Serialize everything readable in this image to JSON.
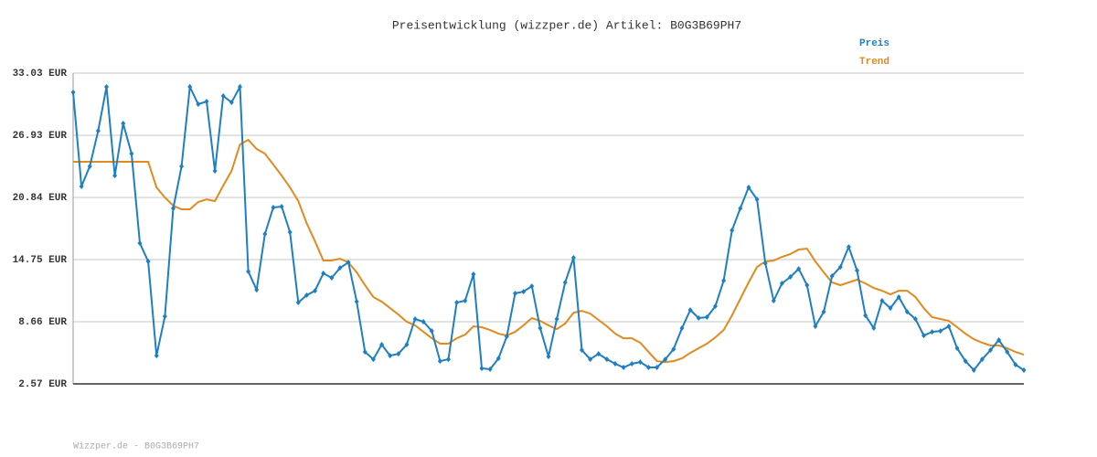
{
  "chart_data": {
    "type": "line",
    "title": "Preisentwicklung (wizzper.de) Artikel: B0G3B69PH7",
    "footer": "Wizzper.de - B0G3B69PH7",
    "categories": [
      null,
      null,
      null,
      null,
      null,
      null,
      null,
      null,
      null,
      null,
      null,
      null,
      null,
      null,
      null,
      null,
      null,
      null,
      null,
      null,
      null,
      null,
      null,
      null,
      null,
      null,
      null,
      null,
      null,
      null,
      null,
      null,
      null,
      null,
      null,
      null,
      null,
      null,
      null,
      null,
      null,
      null,
      null,
      null,
      null,
      null,
      null,
      null,
      null,
      null,
      null,
      null,
      null,
      null,
      null,
      null,
      null,
      null,
      null,
      null,
      null,
      null,
      null,
      null,
      null,
      null,
      null,
      null,
      null,
      null,
      null,
      null,
      null,
      null,
      null,
      null,
      null,
      null,
      null,
      null,
      null,
      null,
      null,
      null,
      null,
      null,
      null,
      null,
      null,
      null,
      null,
      null,
      null,
      null,
      null,
      null,
      null,
      null,
      null,
      null,
      null,
      null,
      null,
      null,
      null,
      null,
      null,
      null,
      null,
      null,
      null,
      null,
      null,
      null,
      null
    ],
    "ylim": [
      2.57,
      33.03
    ],
    "yticks": [
      {
        "value": 2.57,
        "label": "2.57 EUR"
      },
      {
        "value": 8.66,
        "label": "8.66 EUR"
      },
      {
        "value": 14.75,
        "label": "14.75 EUR"
      },
      {
        "value": 20.84,
        "label": "20.84 EUR"
      },
      {
        "value": 26.93,
        "label": "26.93 EUR"
      },
      {
        "value": 33.03,
        "label": "33.03 EUR"
      }
    ],
    "grid": true,
    "series": [
      {
        "name": "Preis",
        "color": "#1f7fc0",
        "markers": true,
        "values": [
          31.15,
          21.92,
          23.89,
          27.38,
          31.69,
          22.99,
          28.1,
          25.14,
          16.36,
          14.57,
          5.34,
          9.19,
          19.77,
          23.89,
          31.69,
          29.98,
          30.25,
          23.44,
          30.79,
          30.16,
          31.69,
          13.59,
          11.79,
          17.26,
          19.86,
          19.95,
          17.44,
          10.54,
          11.26,
          11.7,
          13.41,
          12.96,
          13.94,
          14.48,
          10.63,
          5.7,
          4.98,
          6.42,
          5.34,
          5.52,
          6.42,
          8.93,
          8.66,
          7.76,
          4.8,
          4.98,
          10.54,
          10.72,
          13.32,
          4.09,
          4.0,
          5.07,
          7.22,
          11.44,
          11.61,
          12.15,
          8.03,
          5.25,
          8.93,
          12.51,
          14.93,
          5.88,
          4.98,
          5.52,
          4.98,
          4.54,
          4.18,
          4.54,
          4.71,
          4.18,
          4.18,
          4.98,
          5.97,
          8.03,
          9.82,
          9.02,
          9.11,
          10.18,
          12.69,
          17.62,
          19.77,
          21.83,
          20.66,
          14.39,
          10.72,
          12.42,
          13.05,
          13.85,
          12.24,
          8.21,
          9.64,
          13.14,
          14.03,
          16.0,
          13.68,
          9.28,
          8.03,
          10.72,
          10.0,
          11.08,
          9.64,
          8.93,
          7.31,
          7.67,
          7.76,
          8.21,
          6.06,
          4.8,
          3.91,
          4.98,
          5.88,
          6.87,
          5.7,
          4.45,
          3.91
        ]
      },
      {
        "name": "Trend",
        "color": "#e08a20",
        "markers": false,
        "values": [
          24.34,
          24.34,
          24.34,
          24.34,
          24.34,
          24.34,
          24.34,
          24.34,
          24.34,
          24.34,
          21.83,
          20.84,
          20.04,
          19.68,
          19.68,
          20.4,
          20.66,
          20.49,
          22.01,
          23.44,
          26.04,
          26.49,
          25.59,
          25.14,
          24.07,
          22.99,
          21.83,
          20.49,
          18.33,
          16.54,
          14.66,
          14.66,
          14.84,
          14.48,
          13.5,
          12.24,
          11.08,
          10.63,
          10.0,
          9.37,
          8.66,
          8.3,
          7.67,
          7.04,
          6.51,
          6.51,
          7.04,
          7.4,
          8.21,
          8.12,
          7.85,
          7.49,
          7.31,
          7.67,
          8.3,
          9.02,
          8.75,
          8.3,
          7.94,
          8.48,
          9.55,
          9.73,
          9.46,
          8.84,
          8.21,
          7.49,
          7.04,
          7.04,
          6.6,
          5.7,
          4.8,
          4.71,
          4.8,
          5.07,
          5.61,
          6.06,
          6.51,
          7.13,
          7.85,
          9.28,
          10.9,
          12.51,
          14.03,
          14.57,
          14.66,
          15.02,
          15.29,
          15.74,
          15.83,
          14.57,
          13.5,
          12.51,
          12.24,
          12.51,
          12.78,
          12.42,
          11.97,
          11.7,
          11.35,
          11.7,
          11.7,
          11.08,
          10.0,
          9.11,
          8.93,
          8.75,
          8.12,
          7.49,
          6.95,
          6.6,
          6.33,
          6.33,
          6.06,
          5.7,
          5.43
        ]
      }
    ]
  }
}
